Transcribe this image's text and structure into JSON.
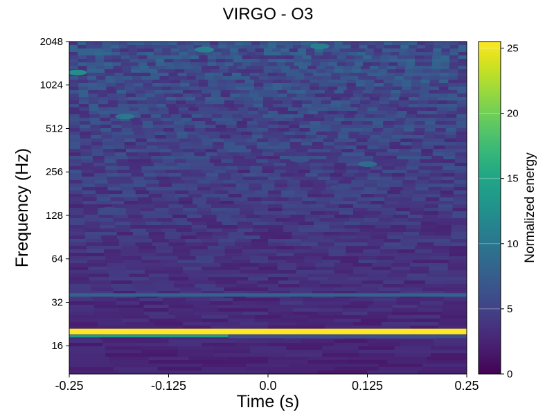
{
  "chart_data": {
    "type": "heatmap",
    "title": "VIRGO - O3",
    "xlabel": "Time (s)",
    "ylabel": "Frequency (Hz)",
    "colorbar_label": "Normalized energy",
    "x_ticks": [
      {
        "value": -0.25,
        "label": "-0.25"
      },
      {
        "value": -0.125,
        "label": "-0.125"
      },
      {
        "value": 0.0,
        "label": "0.0"
      },
      {
        "value": 0.125,
        "label": "0.125"
      },
      {
        "value": 0.25,
        "label": "0.25"
      }
    ],
    "y_ticks": [
      {
        "value": 16,
        "label": "16"
      },
      {
        "value": 32,
        "label": "32"
      },
      {
        "value": 64,
        "label": "64"
      },
      {
        "value": 128,
        "label": "128"
      },
      {
        "value": 256,
        "label": "256"
      },
      {
        "value": 512,
        "label": "512"
      },
      {
        "value": 1024,
        "label": "1024"
      },
      {
        "value": 2048,
        "label": "2048"
      }
    ],
    "colorbar_ticks": [
      {
        "value": 0,
        "label": "0"
      },
      {
        "value": 5,
        "label": "5"
      },
      {
        "value": 10,
        "label": "10"
      },
      {
        "value": 15,
        "label": "15"
      },
      {
        "value": 20,
        "label": "20"
      },
      {
        "value": 25,
        "label": "25"
      }
    ],
    "xlim": [
      -0.25,
      0.25
    ],
    "ylim": [
      10.2,
      2048
    ],
    "yscale": "log2",
    "clim": [
      0,
      25.5
    ],
    "colormap": "viridis",
    "features": [
      {
        "kind": "band",
        "f_low": 19.2,
        "f_high": 21.0,
        "t_start": -0.25,
        "t_end": 0.25,
        "energy": 25.5
      },
      {
        "kind": "band",
        "f_low": 18.3,
        "f_high": 19.1,
        "t_start": -0.25,
        "t_end": -0.05,
        "energy": 14
      },
      {
        "kind": "band",
        "f_low": 18.0,
        "f_high": 19.2,
        "t_start": -0.05,
        "t_end": 0.25,
        "energy": 6
      },
      {
        "kind": "band",
        "f_low": 35.0,
        "f_high": 37.0,
        "t_start": -0.25,
        "t_end": 0.25,
        "energy": 8
      },
      {
        "kind": "blob",
        "t": 0.125,
        "f": 290,
        "energy": 10
      },
      {
        "kind": "blob",
        "t": 0.09,
        "f": 200,
        "energy": 6
      },
      {
        "kind": "blob",
        "t": -0.18,
        "f": 620,
        "energy": 11
      },
      {
        "kind": "blob",
        "t": -0.24,
        "f": 1250,
        "energy": 14
      },
      {
        "kind": "blob",
        "t": -0.08,
        "f": 1800,
        "energy": 12
      },
      {
        "kind": "blob",
        "t": 0.065,
        "f": 1900,
        "energy": 12
      },
      {
        "kind": "blob",
        "t": 0.04,
        "f": 310,
        "energy": 7
      },
      {
        "kind": "blob",
        "t": -0.2,
        "f": 140,
        "energy": 6
      }
    ]
  }
}
